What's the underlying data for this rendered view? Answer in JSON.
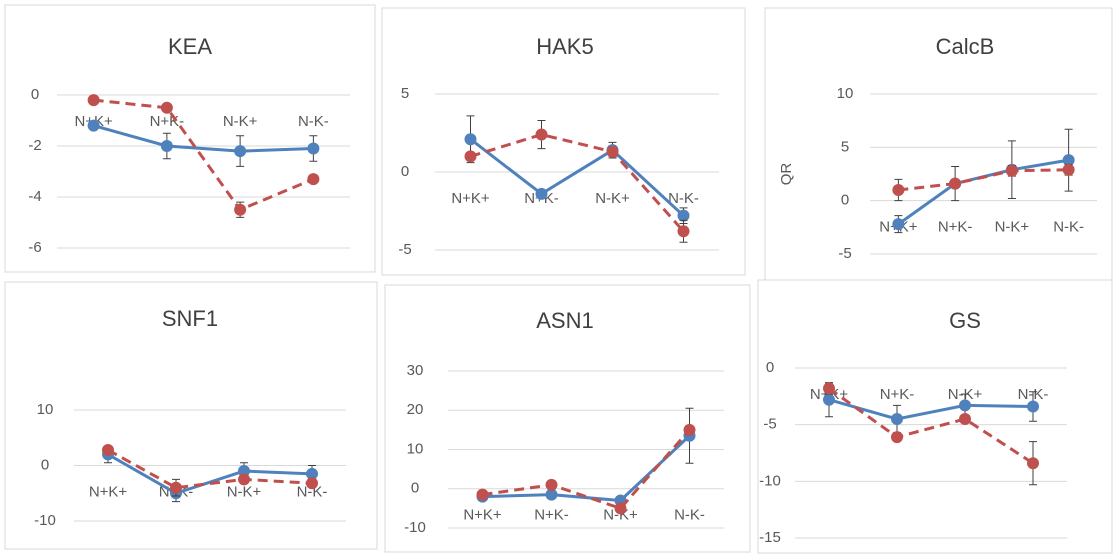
{
  "chart_data": [
    {
      "type": "line",
      "title": "KEA",
      "categories": [
        "N+K+",
        "N+K-",
        "N-K+",
        "N-K-"
      ],
      "ylim": [
        -6,
        0
      ],
      "yticks": [
        0,
        -2,
        -4,
        -6
      ],
      "grid": true,
      "series": [
        {
          "color": "#4f81bd",
          "dash": false,
          "values": [
            -1.2,
            -2.0,
            -2.2,
            -2.1
          ],
          "errors": [
            0.1,
            0.5,
            0.6,
            0.5
          ]
        },
        {
          "color": "#c0504d",
          "dash": true,
          "values": [
            -0.2,
            -0.5,
            -4.5,
            -3.3
          ],
          "errors": [
            0.1,
            0.1,
            0.3,
            0.1
          ]
        }
      ]
    },
    {
      "type": "line",
      "title": "HAK5",
      "categories": [
        "N+K+",
        "N+K-",
        "N-K+",
        "N-K-"
      ],
      "ylim": [
        -5,
        5
      ],
      "yticks": [
        5,
        0,
        -5
      ],
      "grid": true,
      "series": [
        {
          "color": "#4f81bd",
          "dash": false,
          "values": [
            2.1,
            -1.4,
            1.4,
            -2.8
          ],
          "errors": [
            1.5,
            0.2,
            0.5,
            0.5
          ]
        },
        {
          "color": "#c0504d",
          "dash": true,
          "values": [
            1.0,
            2.4,
            1.3,
            -3.8
          ],
          "errors": [
            0.1,
            0.9,
            0.3,
            0.7
          ]
        }
      ]
    },
    {
      "type": "line",
      "title": "CalcB",
      "y_label": "QR",
      "categories": [
        "N+K+",
        "N+K-",
        "N-K+",
        "N-K-"
      ],
      "ylim": [
        -5,
        10
      ],
      "yticks": [
        10,
        5,
        0,
        -5
      ],
      "grid": true,
      "series": [
        {
          "color": "#4f81bd",
          "dash": false,
          "values": [
            -2.2,
            1.6,
            2.9,
            3.8
          ],
          "errors": [
            0.8,
            1.6,
            2.7,
            2.9
          ]
        },
        {
          "color": "#c0504d",
          "dash": true,
          "values": [
            1.0,
            1.6,
            2.8,
            2.9
          ],
          "errors": [
            1.0,
            0.3,
            0.5,
            0.5
          ]
        }
      ]
    },
    {
      "type": "line",
      "title": "SNF1",
      "categories": [
        "N+K+",
        "N+K-",
        "N-K+",
        "N-K-"
      ],
      "ylim": [
        -10,
        10
      ],
      "yticks": [
        10,
        0,
        -10
      ],
      "grid": true,
      "series": [
        {
          "color": "#4f81bd",
          "dash": false,
          "values": [
            2,
            -5,
            -1,
            -1.5
          ],
          "errors": [
            1.5,
            1.5,
            1.5,
            1.5
          ]
        },
        {
          "color": "#c0504d",
          "dash": true,
          "values": [
            2.8,
            -4,
            -2.5,
            -3.2
          ],
          "errors": [
            0.5,
            1.5,
            0.5,
            0.5
          ]
        }
      ]
    },
    {
      "type": "line",
      "title": "ASN1",
      "categories": [
        "N+K+",
        "N+K-",
        "N-K+",
        "N-K-"
      ],
      "ylim": [
        -10,
        30
      ],
      "yticks": [
        30,
        20,
        10,
        0,
        -10
      ],
      "grid": true,
      "series": [
        {
          "color": "#4f81bd",
          "dash": false,
          "values": [
            -2,
            -1.5,
            -3,
            13.5
          ],
          "errors": [
            0.5,
            0.5,
            0.5,
            7
          ]
        },
        {
          "color": "#c0504d",
          "dash": true,
          "values": [
            -1.5,
            1,
            -5,
            15
          ],
          "errors": [
            0.5,
            0.5,
            0.5,
            0.5
          ]
        }
      ]
    },
    {
      "type": "line",
      "title": "GS",
      "categories": [
        "N+K+",
        "N+K-",
        "N-K+",
        "N-K-"
      ],
      "ylim": [
        -15,
        0
      ],
      "yticks": [
        0,
        -5,
        -10,
        -15
      ],
      "grid": true,
      "series": [
        {
          "color": "#4f81bd",
          "dash": false,
          "values": [
            -2.8,
            -4.5,
            -3.3,
            -3.4
          ],
          "errors": [
            1.5,
            1.2,
            1.0,
            1.3
          ]
        },
        {
          "color": "#c0504d",
          "dash": true,
          "values": [
            -1.8,
            -6.1,
            -4.5,
            -8.4
          ],
          "errors": [
            0.5,
            0.3,
            0.3,
            1.9
          ]
        }
      ]
    }
  ]
}
